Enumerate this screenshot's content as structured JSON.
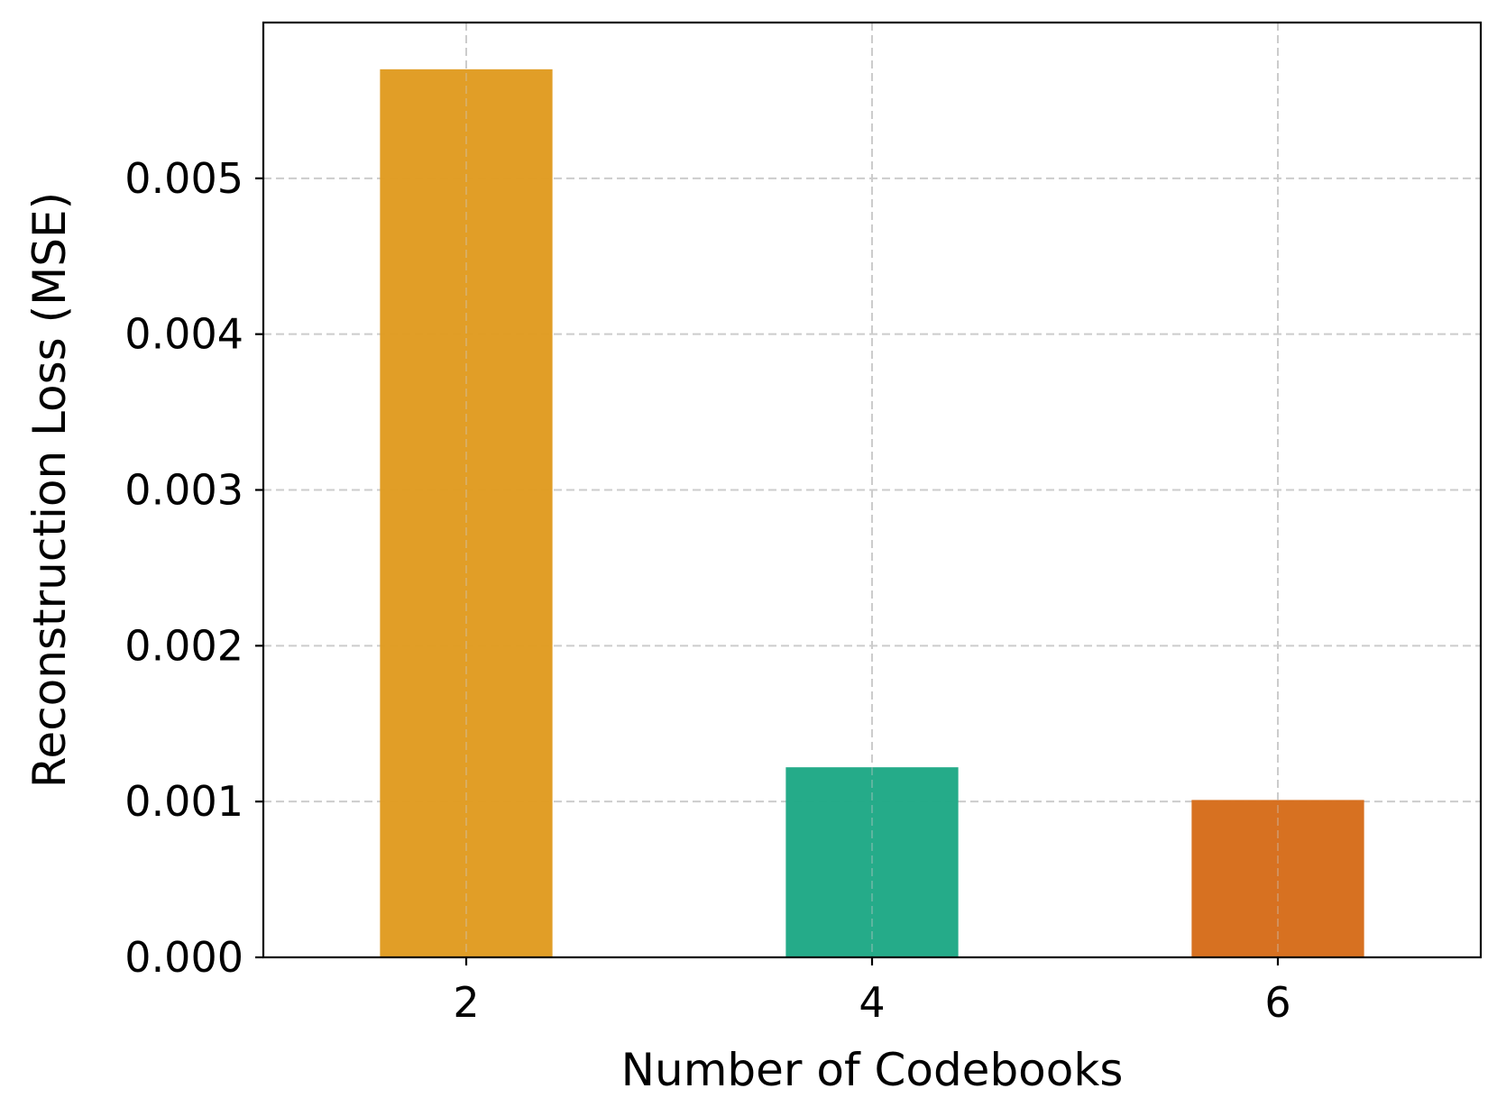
{
  "chart_data": {
    "type": "bar",
    "categories": [
      "2",
      "4",
      "6"
    ],
    "values": [
      0.0057,
      0.00122,
      0.00101
    ],
    "colors": [
      "#e09b20",
      "#1ea885",
      "#d66c1a"
    ],
    "title": "",
    "xlabel": "Number of Codebooks",
    "ylabel": "Reconstruction Loss (MSE)",
    "ylim": [
      0,
      0.006
    ],
    "yticks": [
      0.0,
      0.001,
      0.002,
      0.003,
      0.004,
      0.005
    ],
    "ytick_labels": [
      "0.000",
      "0.001",
      "0.002",
      "0.003",
      "0.004",
      "0.005"
    ],
    "grid": true,
    "legend": "none"
  }
}
